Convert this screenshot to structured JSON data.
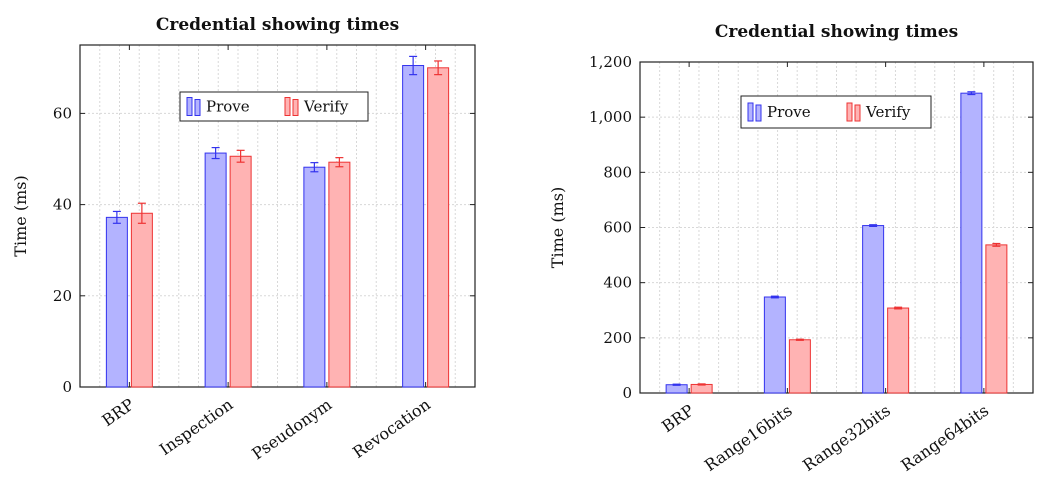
{
  "chart_data": [
    {
      "type": "bar",
      "title": "Credential showing times",
      "xlabel": "",
      "ylabel": "Time (ms)",
      "ylim": [
        0,
        75
      ],
      "yticks": [
        "0",
        "20",
        "40",
        "60"
      ],
      "ytick_values": [
        0,
        20,
        40,
        60
      ],
      "categories": [
        "BRP",
        "Inspection",
        "Pseudonym",
        "Revocation"
      ],
      "series": [
        {
          "name": "Prove",
          "values": [
            37.2,
            51.3,
            48.2,
            70.5
          ],
          "errors": [
            1.3,
            1.2,
            1.0,
            2.0
          ],
          "color": "#b3b3ff",
          "edge": "#3333ee"
        },
        {
          "name": "Verify",
          "values": [
            38.1,
            50.6,
            49.3,
            70.0
          ],
          "errors": [
            2.2,
            1.3,
            1.0,
            1.5
          ],
          "color": "#ffb3b3",
          "edge": "#ee3333"
        }
      ],
      "grid": true,
      "legend": "top-center"
    },
    {
      "type": "bar",
      "title": "Credential showing times",
      "xlabel": "",
      "ylabel": "Time (ms)",
      "ylim": [
        0,
        1200
      ],
      "yticks": [
        "0",
        "200",
        "400",
        "600",
        "800",
        "1,000",
        "1,200"
      ],
      "ytick_values": [
        0,
        200,
        400,
        600,
        800,
        1000,
        1200
      ],
      "categories": [
        "BRP",
        "Range16bits",
        "Range32bits",
        "Range64bits"
      ],
      "series": [
        {
          "name": "Prove",
          "values": [
            30,
            348,
            607,
            1087
          ],
          "errors": [
            2,
            3,
            3,
            5
          ],
          "color": "#b3b3ff",
          "edge": "#3333ee"
        },
        {
          "name": "Verify",
          "values": [
            31,
            193,
            308,
            537
          ],
          "errors": [
            2,
            2,
            3,
            5
          ],
          "color": "#ffb3b3",
          "edge": "#ee3333"
        }
      ],
      "grid": true,
      "legend": "top-center"
    }
  ]
}
